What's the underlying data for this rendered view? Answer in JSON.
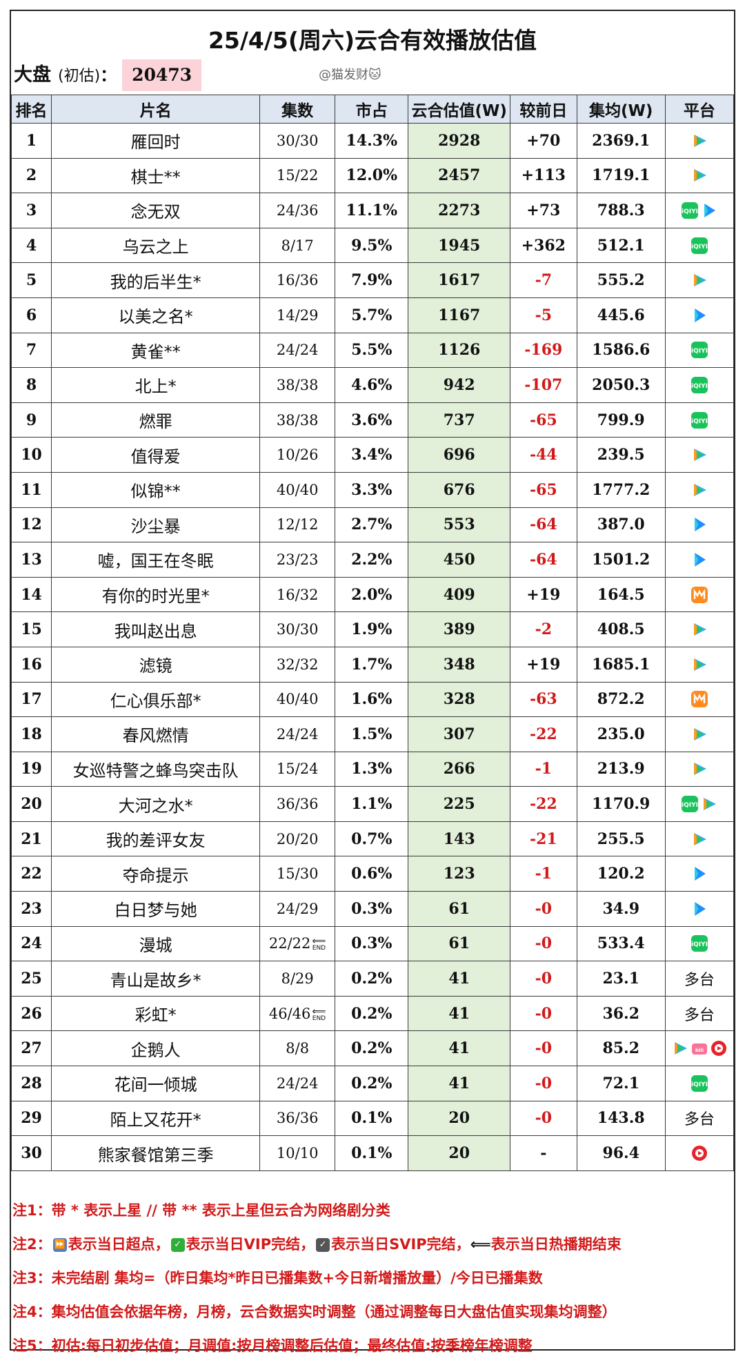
{
  "title": "25/4/5(周六)云合有效播放估值",
  "market": {
    "label": "大盘",
    "paren": "(初估)",
    "colon": "：",
    "value": "20473"
  },
  "watermark": "@猫发财🐱",
  "headers": [
    "排名",
    "片名",
    "集数",
    "市占",
    "云合估值(W)",
    "较前日",
    "集均(W)",
    "平台"
  ],
  "rows": [
    {
      "rank": "1",
      "name": "雁回时",
      "eps": "30/30",
      "share": "14.3%",
      "est": "2928",
      "chg": "+70",
      "avg": "2369.1",
      "platforms": [
        "tencent"
      ]
    },
    {
      "rank": "2",
      "name": "棋士**",
      "eps": "15/22",
      "share": "12.0%",
      "est": "2457",
      "chg": "+113",
      "avg": "1719.1",
      "platforms": [
        "tencent"
      ]
    },
    {
      "rank": "3",
      "name": "念无双",
      "eps": "24/36",
      "share": "11.1%",
      "est": "2273",
      "chg": "+73",
      "avg": "788.3",
      "platforms": [
        "iqiyi",
        "youku"
      ]
    },
    {
      "rank": "4",
      "name": "乌云之上",
      "eps": "8/17",
      "share": "9.5%",
      "est": "1945",
      "chg": "+362",
      "avg": "512.1",
      "platforms": [
        "iqiyi"
      ]
    },
    {
      "rank": "5",
      "name": "我的后半生*",
      "eps": "16/36",
      "share": "7.9%",
      "est": "1617",
      "chg": "-7",
      "avg": "555.2",
      "platforms": [
        "tencent"
      ]
    },
    {
      "rank": "6",
      "name": "以美之名*",
      "eps": "14/29",
      "share": "5.7%",
      "est": "1167",
      "chg": "-5",
      "avg": "445.6",
      "platforms": [
        "youku"
      ]
    },
    {
      "rank": "7",
      "name": "黄雀**",
      "eps": "24/24",
      "share": "5.5%",
      "est": "1126",
      "chg": "-169",
      "avg": "1586.6",
      "platforms": [
        "iqiyi"
      ]
    },
    {
      "rank": "8",
      "name": "北上*",
      "eps": "38/38",
      "share": "4.6%",
      "est": "942",
      "chg": "-107",
      "avg": "2050.3",
      "platforms": [
        "iqiyi"
      ]
    },
    {
      "rank": "9",
      "name": "燃罪",
      "eps": "38/38",
      "share": "3.6%",
      "est": "737",
      "chg": "-65",
      "avg": "799.9",
      "platforms": [
        "iqiyi"
      ]
    },
    {
      "rank": "10",
      "name": "值得爱",
      "eps": "10/26",
      "share": "3.4%",
      "est": "696",
      "chg": "-44",
      "avg": "239.5",
      "platforms": [
        "tencent"
      ]
    },
    {
      "rank": "11",
      "name": "似锦**",
      "eps": "40/40",
      "share": "3.3%",
      "est": "676",
      "chg": "-65",
      "avg": "1777.2",
      "platforms": [
        "tencent"
      ]
    },
    {
      "rank": "12",
      "name": "沙尘暴",
      "eps": "12/12",
      "share": "2.7%",
      "est": "553",
      "chg": "-64",
      "avg": "387.0",
      "platforms": [
        "youku"
      ]
    },
    {
      "rank": "13",
      "name": "嘘，国王在冬眠",
      "eps": "23/23",
      "share": "2.2%",
      "est": "450",
      "chg": "-64",
      "avg": "1501.2",
      "platforms": [
        "youku"
      ]
    },
    {
      "rank": "14",
      "name": "有你的时光里*",
      "eps": "16/32",
      "share": "2.0%",
      "est": "409",
      "chg": "+19",
      "avg": "164.5",
      "platforms": [
        "mango"
      ]
    },
    {
      "rank": "15",
      "name": "我叫赵出息",
      "eps": "30/30",
      "share": "1.9%",
      "est": "389",
      "chg": "-2",
      "avg": "408.5",
      "platforms": [
        "tencent"
      ]
    },
    {
      "rank": "16",
      "name": "滤镜",
      "eps": "32/32",
      "share": "1.7%",
      "est": "348",
      "chg": "+19",
      "avg": "1685.1",
      "platforms": [
        "tencent"
      ]
    },
    {
      "rank": "17",
      "name": "仁心俱乐部*",
      "eps": "40/40",
      "share": "1.6%",
      "est": "328",
      "chg": "-63",
      "avg": "872.2",
      "platforms": [
        "mango"
      ]
    },
    {
      "rank": "18",
      "name": "春风燃情",
      "eps": "24/24",
      "share": "1.5%",
      "est": "307",
      "chg": "-22",
      "avg": "235.0",
      "platforms": [
        "tencent"
      ]
    },
    {
      "rank": "19",
      "name": "女巡特警之蜂鸟突击队",
      "eps": "15/24",
      "share": "1.3%",
      "est": "266",
      "chg": "-1",
      "avg": "213.9",
      "platforms": [
        "tencent"
      ]
    },
    {
      "rank": "20",
      "name": "大河之水*",
      "eps": "36/36",
      "share": "1.1%",
      "est": "225",
      "chg": "-22",
      "avg": "1170.9",
      "platforms": [
        "iqiyi",
        "tencent"
      ]
    },
    {
      "rank": "21",
      "name": "我的差评女友",
      "eps": "20/20",
      "share": "0.7%",
      "est": "143",
      "chg": "-21",
      "avg": "255.5",
      "platforms": [
        "tencent"
      ]
    },
    {
      "rank": "22",
      "name": "夺命提示",
      "eps": "15/30",
      "share": "0.6%",
      "est": "123",
      "chg": "-1",
      "avg": "120.2",
      "platforms": [
        "youku"
      ]
    },
    {
      "rank": "23",
      "name": "白日梦与她",
      "eps": "24/29",
      "share": "0.3%",
      "est": "61",
      "chg": "-0",
      "avg": "34.9",
      "platforms": [
        "youku"
      ]
    },
    {
      "rank": "24",
      "name": "漫城",
      "eps": "22/22",
      "end": true,
      "share": "0.3%",
      "est": "61",
      "chg": "-0",
      "avg": "533.4",
      "platforms": [
        "iqiyi"
      ]
    },
    {
      "rank": "25",
      "name": "青山是故乡*",
      "eps": "8/29",
      "share": "0.2%",
      "est": "41",
      "chg": "-0",
      "avg": "23.1",
      "platforms": [],
      "platform_text": "多台"
    },
    {
      "rank": "26",
      "name": "彩虹*",
      "eps": "46/46",
      "end": true,
      "share": "0.2%",
      "est": "41",
      "chg": "-0",
      "avg": "36.2",
      "platforms": [],
      "platform_text": "多台"
    },
    {
      "rank": "27",
      "name": "企鹅人",
      "eps": "8/8",
      "share": "0.2%",
      "est": "41",
      "chg": "-0",
      "avg": "85.2",
      "platforms": [
        "tencent",
        "bilibili",
        "mgtv-red"
      ]
    },
    {
      "rank": "28",
      "name": "花间一倾城",
      "eps": "24/24",
      "share": "0.2%",
      "est": "41",
      "chg": "-0",
      "avg": "72.1",
      "platforms": [
        "iqiyi"
      ]
    },
    {
      "rank": "29",
      "name": "陌上又花开*",
      "eps": "36/36",
      "share": "0.1%",
      "est": "20",
      "chg": "-0",
      "avg": "143.8",
      "platforms": [],
      "platform_text": "多台"
    },
    {
      "rank": "30",
      "name": "熊家餐馆第三季",
      "eps": "10/10",
      "share": "0.1%",
      "est": "20",
      "chg": "-",
      "avg": "96.4",
      "platforms": [
        "mgtv-red"
      ]
    }
  ],
  "end_tag": "END",
  "notes": {
    "n1": "注1：带 * 表示上星 // 带 ** 表示上星但云合为网络剧分类",
    "n2a": "注2：",
    "n2b": "表示当日超点，",
    "n2c": "表示当日VIP完结，",
    "n2d": "表示当日SVIP完结，",
    "n2e": "表示当日热播期结束",
    "n3": "注3：未完结剧 集均=（昨日集均*昨日已播集数+今日新增播放量）/今日已播集数",
    "n4": "注4：集均估值会依据年榜，月榜，云合数据实时调整（通过调整每日大盘估值实现集均调整）",
    "n5": "注5：初估:每日初步估值；月调值:按月榜调整后估值；最终估值:按季榜年榜调整"
  },
  "colors": {
    "header_bg": "#dde6f1",
    "est_bg": "#e2efd9",
    "market_bg": "#fbd3d9",
    "negative": "#d11a1a"
  }
}
